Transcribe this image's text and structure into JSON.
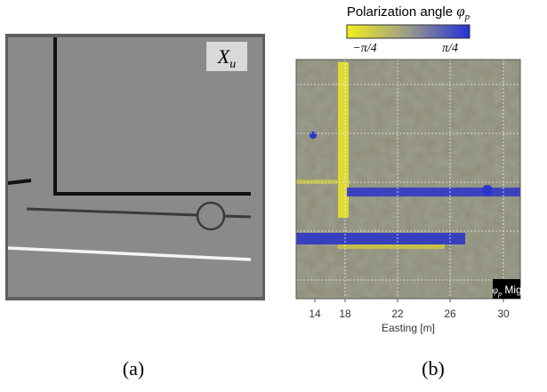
{
  "panel_a": {
    "label": "X",
    "label_sub": "u",
    "caption": "(a)"
  },
  "panel_b": {
    "colorbar_title": "Polarization angle ",
    "colorbar_symbol": "φ",
    "colorbar_symbol_sub": "p",
    "colorbar_min": "−π/4",
    "colorbar_max": "π/4",
    "x_ticks": [
      "14",
      "18",
      "22",
      "26",
      "30"
    ],
    "x_label": "Easting [m]",
    "inset_symbol": "φ",
    "inset_symbol_sub": "p",
    "inset_text": " Mig",
    "caption": "(b)"
  }
}
